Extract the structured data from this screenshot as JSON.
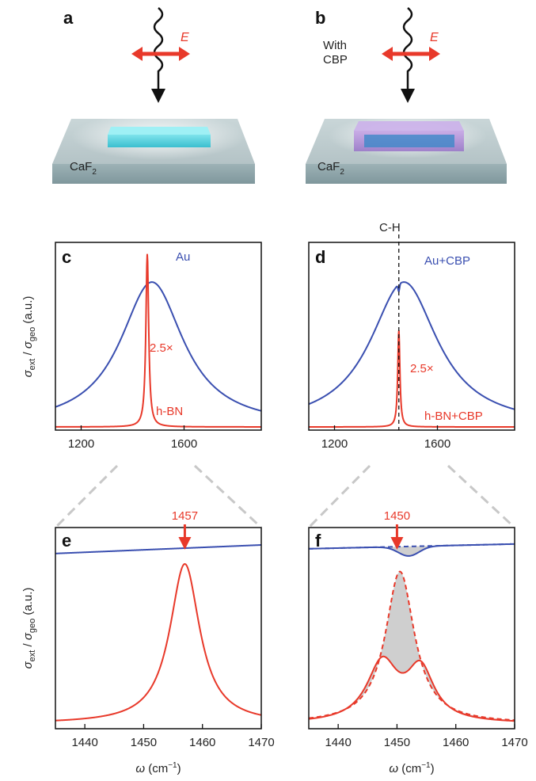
{
  "panel_labels": [
    "a",
    "b",
    "c",
    "d",
    "e",
    "f"
  ],
  "schematic": {
    "a": {
      "field_label": "E",
      "substrate_label": "CaF",
      "substrate_sub": "2"
    },
    "b": {
      "field_label": "E",
      "coating_line1": "With",
      "coating_line2": "CBP",
      "substrate_label": "CaF",
      "substrate_sub": "2"
    }
  },
  "colors": {
    "blue": "#3a4fb0",
    "red": "#e8392a",
    "shade": "#cfcfcf",
    "arrow_red": "#e8392a"
  },
  "chart_data": [
    {
      "panel": "c",
      "type": "line",
      "xlim": [
        1100,
        1900
      ],
      "xticks": [
        1200,
        1600
      ],
      "ylabel": "σext / σgeo (a.u.)",
      "ylabel_parts": {
        "sym": "σ",
        "num_sub": "ext",
        "sep": " / ",
        "den_sub": "geo",
        "unit": " (a.u.)"
      },
      "series": [
        {
          "name": "Au",
          "color": "#3a4fb0",
          "shape": "lorentz",
          "peak_x": 1475,
          "width": 150,
          "amp": 0.82,
          "base": 0.0
        },
        {
          "name": "h-BN",
          "color": "#e8392a",
          "shape": "lorentz",
          "peak_x": 1457,
          "width": 6.5,
          "amp": 0.98,
          "base": 0.0
        }
      ],
      "annotations": [
        {
          "text": "Au",
          "color": "#3a4fb0"
        },
        {
          "text": "2.5×",
          "color": "#e8392a"
        },
        {
          "text": "h-BN",
          "color": "#e8392a"
        }
      ]
    },
    {
      "panel": "d",
      "type": "line",
      "xlim": [
        1100,
        1900
      ],
      "xticks": [
        1200,
        1600
      ],
      "vline": {
        "x": 1450,
        "label": "C-H"
      },
      "series": [
        {
          "name": "Au+CBP",
          "color": "#3a4fb0",
          "shape": "lorentz",
          "peak_x": 1470,
          "width": 160,
          "amp": 0.82,
          "base": 0.0,
          "dip": {
            "x": 1450,
            "width": 4,
            "depth": 0.04
          }
        },
        {
          "name": "h-BN+CBP",
          "color": "#e8392a",
          "shape": "lorentz",
          "peak_x": 1450,
          "width": 5,
          "amp": 0.55,
          "base": 0.0
        }
      ],
      "annotations": [
        {
          "text": "Au+CBP",
          "color": "#3a4fb0"
        },
        {
          "text": "2.5×",
          "color": "#e8392a"
        },
        {
          "text": "h-BN+CBP",
          "color": "#e8392a"
        }
      ]
    },
    {
      "panel": "e",
      "type": "line",
      "xlim": [
        1435,
        1470
      ],
      "xticks": [
        1440,
        1450,
        1460,
        1470
      ],
      "xlabel": "ω (cm−1)",
      "xlabel_parts": {
        "sym": "ω",
        "unit": " (cm",
        "sup": "−1",
        "close": ")"
      },
      "ylabel": "σext / σgeo (a.u.)",
      "ylabel_parts": {
        "sym": "σ",
        "num_sub": "ext",
        "sep": " / ",
        "den_sub": "geo",
        "unit": " (a.u.)"
      },
      "peak_marker": {
        "x": 1457,
        "label": "1457"
      },
      "series": [
        {
          "name": "Au",
          "color": "#3a4fb0",
          "shape": "linear",
          "y_start": 0.905,
          "y_end": 0.95
        },
        {
          "name": "h-BN",
          "color": "#e8392a",
          "shape": "lorentz",
          "peak_x": 1457,
          "width": 3.1,
          "amp": 0.84,
          "base": 0.01
        }
      ]
    },
    {
      "panel": "f",
      "type": "line",
      "xlim": [
        1435,
        1470
      ],
      "xticks": [
        1440,
        1450,
        1460,
        1470
      ],
      "xlabel": "ω (cm−1)",
      "xlabel_parts": {
        "sym": "ω",
        "unit": " (cm",
        "sup": "−1",
        "close": ")"
      },
      "peak_marker": {
        "x": 1450,
        "label": "1450"
      },
      "series": [
        {
          "name": "Au+CBP",
          "color": "#3a4fb0",
          "shape": "linear",
          "y_start": 0.93,
          "y_end": 0.955,
          "dip": {
            "x": 1452,
            "width": 2.5,
            "depth": 0.05
          }
        },
        {
          "name": "Au",
          "color": "#3a4fb0",
          "dashed": true,
          "shape": "linear",
          "y_start": 0.93,
          "y_end": 0.955
        },
        {
          "name": "h-BN",
          "color": "#e8392a",
          "dashed": true,
          "shape": "lorentz",
          "peak_x": 1450.5,
          "width": 3.0,
          "amp": 0.8,
          "base": 0.01
        },
        {
          "name": "h-BN+CBP",
          "color": "#e8392a",
          "shape": "double",
          "peaks": [
            {
              "x": 1447.5,
              "width": 3.2,
              "amp": 0.31
            },
            {
              "x": 1454,
              "width": 2.8,
              "amp": 0.27
            }
          ],
          "mid_dip": 0.3,
          "base": 0.01
        }
      ]
    }
  ]
}
